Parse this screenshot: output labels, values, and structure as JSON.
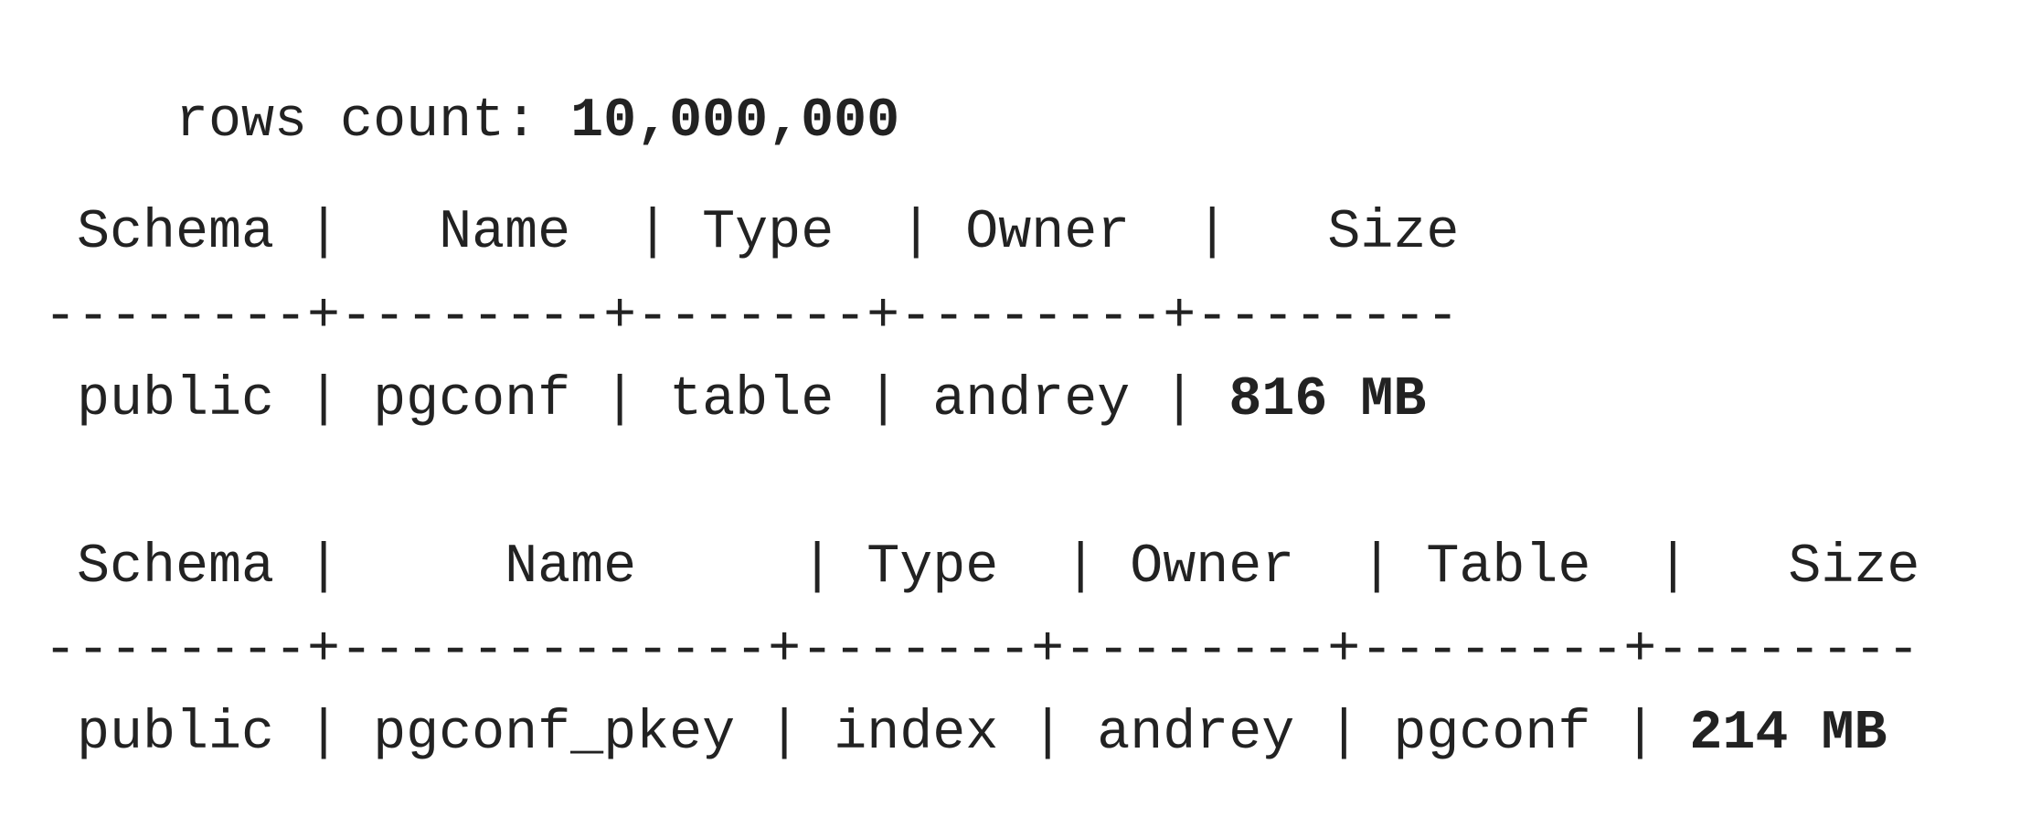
{
  "summary": {
    "label": "rows count: ",
    "value": "10,000,000"
  },
  "table_listing": {
    "header": [
      "Schema",
      "Name",
      "Type",
      "Owner",
      "Size"
    ],
    "separator": "--------+--------+-------+--------+--------",
    "rows": [
      {
        "schema": "public",
        "name": "pgconf",
        "type": "table",
        "owner": "andrey",
        "size": "816 MB"
      }
    ]
  },
  "index_listing": {
    "header": [
      "Schema",
      "Name",
      "Type",
      "Owner",
      "Table",
      "Size"
    ],
    "separator": "--------+-------------+-------+--------+--------+--------",
    "rows": [
      {
        "schema": "public",
        "name": "pgconf_pkey",
        "type": "index",
        "owner": "andrey",
        "table": "pgconf",
        "size": "214 MB"
      }
    ]
  }
}
